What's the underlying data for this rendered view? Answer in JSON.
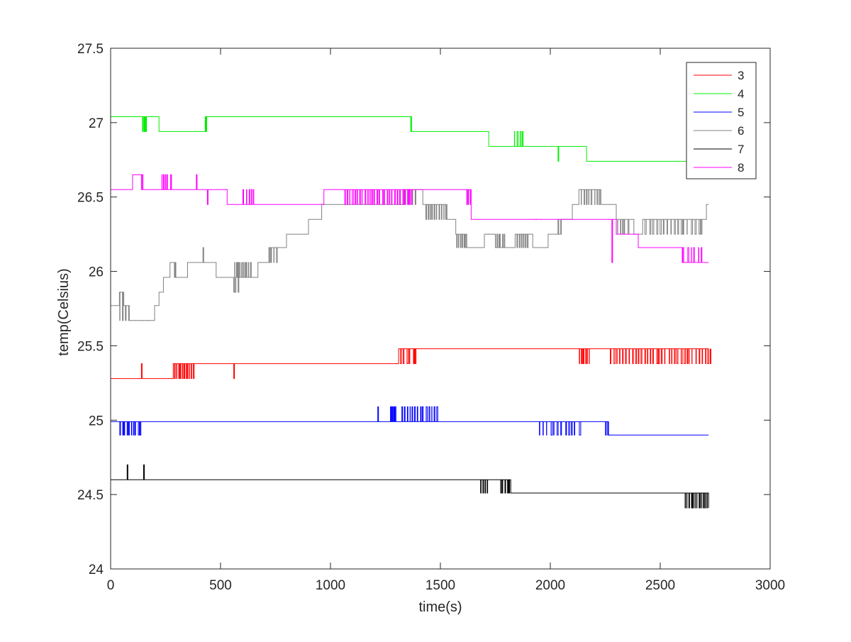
{
  "chart_data": {
    "type": "line",
    "title": "",
    "xlabel": "time(s)",
    "ylabel": "temp(Celsius)",
    "xlim": [
      0,
      3000
    ],
    "ylim": [
      24,
      27.5
    ],
    "xticks": [
      0,
      500,
      1000,
      1500,
      2000,
      2500,
      3000
    ],
    "yticks": [
      24,
      24.5,
      25,
      25.5,
      26,
      26.5,
      27,
      27.5
    ],
    "grid": false,
    "legend_position": "top-right",
    "series": [
      {
        "name": "3",
        "color": "#ff0000",
        "base": 25.28,
        "alt": 25.38,
        "steps": [
          [
            0,
            25.28
          ],
          [
            285,
            25.38
          ],
          [
            1310,
            25.48
          ],
          [
            2720,
            25.48
          ]
        ],
        "spikes": [
          [
            140,
            25.38
          ],
          [
            560,
            25.28
          ],
          [
            1380,
            25.38
          ]
        ],
        "bursts": [
          [
            290,
            380,
            25.28,
            11
          ],
          [
            1295,
            1400,
            25.38,
            7
          ],
          [
            2130,
            2180,
            25.38,
            7
          ],
          [
            2270,
            2740,
            25.38,
            34
          ]
        ]
      },
      {
        "name": "4",
        "color": "#00ee00",
        "base": 27.04,
        "alt": 26.94,
        "steps": [
          [
            0,
            27.04
          ],
          [
            220,
            26.94
          ],
          [
            430,
            27.04
          ],
          [
            1365,
            26.94
          ],
          [
            1720,
            26.84
          ],
          [
            2165,
            26.74
          ],
          [
            2620,
            26.74
          ]
        ],
        "spikes": [
          [
            2035,
            26.74
          ]
        ],
        "bursts": [
          [
            145,
            165,
            26.94,
            4
          ],
          [
            430,
            440,
            26.94,
            2
          ],
          [
            1355,
            1375,
            27.04,
            2
          ],
          [
            1680,
            1710,
            26.94,
            4
          ],
          [
            1830,
            1880,
            26.94,
            4
          ]
        ]
      },
      {
        "name": "5",
        "color": "#0000ff",
        "base": 24.99,
        "alt": 24.9,
        "steps": [
          [
            0,
            24.99
          ],
          [
            2265,
            24.9
          ],
          [
            2720,
            24.9
          ]
        ],
        "spikes": [
          [
            1215,
            25.09
          ]
        ],
        "bursts": [
          [
            40,
            140,
            24.9,
            10
          ],
          [
            1270,
            1300,
            25.09,
            6
          ],
          [
            1320,
            1490,
            25.09,
            14
          ],
          [
            1950,
            2140,
            24.9,
            12
          ],
          [
            2250,
            2275,
            24.9,
            3
          ]
        ]
      },
      {
        "name": "6",
        "color": "#808080",
        "base": 25.77,
        "alt": 25.67,
        "steps": [
          [
            0,
            25.77
          ],
          [
            40,
            25.86
          ],
          [
            60,
            25.77
          ],
          [
            85,
            25.67
          ],
          [
            200,
            25.77
          ],
          [
            220,
            25.86
          ],
          [
            240,
            25.96
          ],
          [
            270,
            26.06
          ],
          [
            290,
            25.96
          ],
          [
            350,
            26.06
          ],
          [
            480,
            25.96
          ],
          [
            560,
            25.86
          ],
          [
            570,
            25.96
          ],
          [
            670,
            26.06
          ],
          [
            720,
            26.16
          ],
          [
            800,
            26.25
          ],
          [
            900,
            26.35
          ],
          [
            960,
            26.45
          ],
          [
            1050,
            26.45
          ],
          [
            1330,
            26.55
          ],
          [
            1420,
            26.45
          ],
          [
            1530,
            26.35
          ],
          [
            1570,
            26.25
          ],
          [
            1620,
            26.16
          ],
          [
            1700,
            26.25
          ],
          [
            1750,
            26.16
          ],
          [
            1840,
            26.25
          ],
          [
            1920,
            26.16
          ],
          [
            1990,
            26.25
          ],
          [
            2050,
            26.35
          ],
          [
            2100,
            26.45
          ],
          [
            2130,
            26.55
          ],
          [
            2230,
            26.45
          ],
          [
            2300,
            26.35
          ],
          [
            2380,
            26.25
          ],
          [
            2420,
            26.35
          ],
          [
            2710,
            26.45
          ],
          [
            2720,
            26.45
          ]
        ],
        "spikes": [
          [
            420,
            26.16
          ],
          [
            580,
            25.86
          ]
        ],
        "bursts": [
          [
            40,
            180,
            25.67,
            12
          ],
          [
            270,
            300,
            26.06,
            3
          ],
          [
            380,
            460,
            26.06,
            10
          ],
          [
            560,
            640,
            26.06,
            10
          ],
          [
            700,
            760,
            26.06,
            6
          ],
          [
            1300,
            1390,
            26.45,
            8
          ],
          [
            1430,
            1530,
            26.35,
            10
          ],
          [
            1570,
            1620,
            26.16,
            6
          ],
          [
            1700,
            1800,
            26.25,
            10
          ],
          [
            1830,
            1900,
            26.16,
            8
          ],
          [
            2030,
            2100,
            26.35,
            6
          ],
          [
            2140,
            2230,
            26.45,
            8
          ],
          [
            2300,
            2360,
            26.25,
            5
          ],
          [
            2380,
            2700,
            26.25,
            20
          ]
        ]
      },
      {
        "name": "7",
        "color": "#000000",
        "base": 24.6,
        "alt": 24.51,
        "steps": [
          [
            0,
            24.6
          ],
          [
            1820,
            24.51
          ],
          [
            2720,
            24.41
          ]
        ],
        "spikes": [
          [
            75,
            24.7
          ],
          [
            150,
            24.7
          ]
        ],
        "bursts": [
          [
            1680,
            1720,
            24.51,
            4
          ],
          [
            1770,
            1830,
            24.51,
            6
          ],
          [
            2610,
            2720,
            24.41,
            12
          ]
        ]
      },
      {
        "name": "8",
        "color": "#ff00ff",
        "base": 26.55,
        "alt": 26.45,
        "steps": [
          [
            0,
            26.55
          ],
          [
            100,
            26.65
          ],
          [
            140,
            26.55
          ],
          [
            530,
            26.45
          ],
          [
            970,
            26.55
          ],
          [
            1640,
            26.35
          ],
          [
            2300,
            26.25
          ],
          [
            2400,
            26.16
          ],
          [
            2600,
            26.06
          ],
          [
            2720,
            26.06
          ]
        ],
        "spikes": [
          [
            390,
            26.65
          ],
          [
            440,
            26.45
          ],
          [
            2280,
            26.06
          ]
        ],
        "bursts": [
          [
            100,
            150,
            26.65,
            5
          ],
          [
            230,
            260,
            26.65,
            4
          ],
          [
            270,
            280,
            26.65,
            2
          ],
          [
            520,
            530,
            26.55,
            2
          ],
          [
            600,
            660,
            26.55,
            5
          ],
          [
            1060,
            1380,
            26.45,
            28
          ],
          [
            1620,
            1640,
            26.45,
            3
          ],
          [
            1900,
            1960,
            26.35,
            5
          ],
          [
            2380,
            2400,
            26.25,
            3
          ],
          [
            2600,
            2700,
            26.16,
            6
          ]
        ]
      }
    ]
  }
}
